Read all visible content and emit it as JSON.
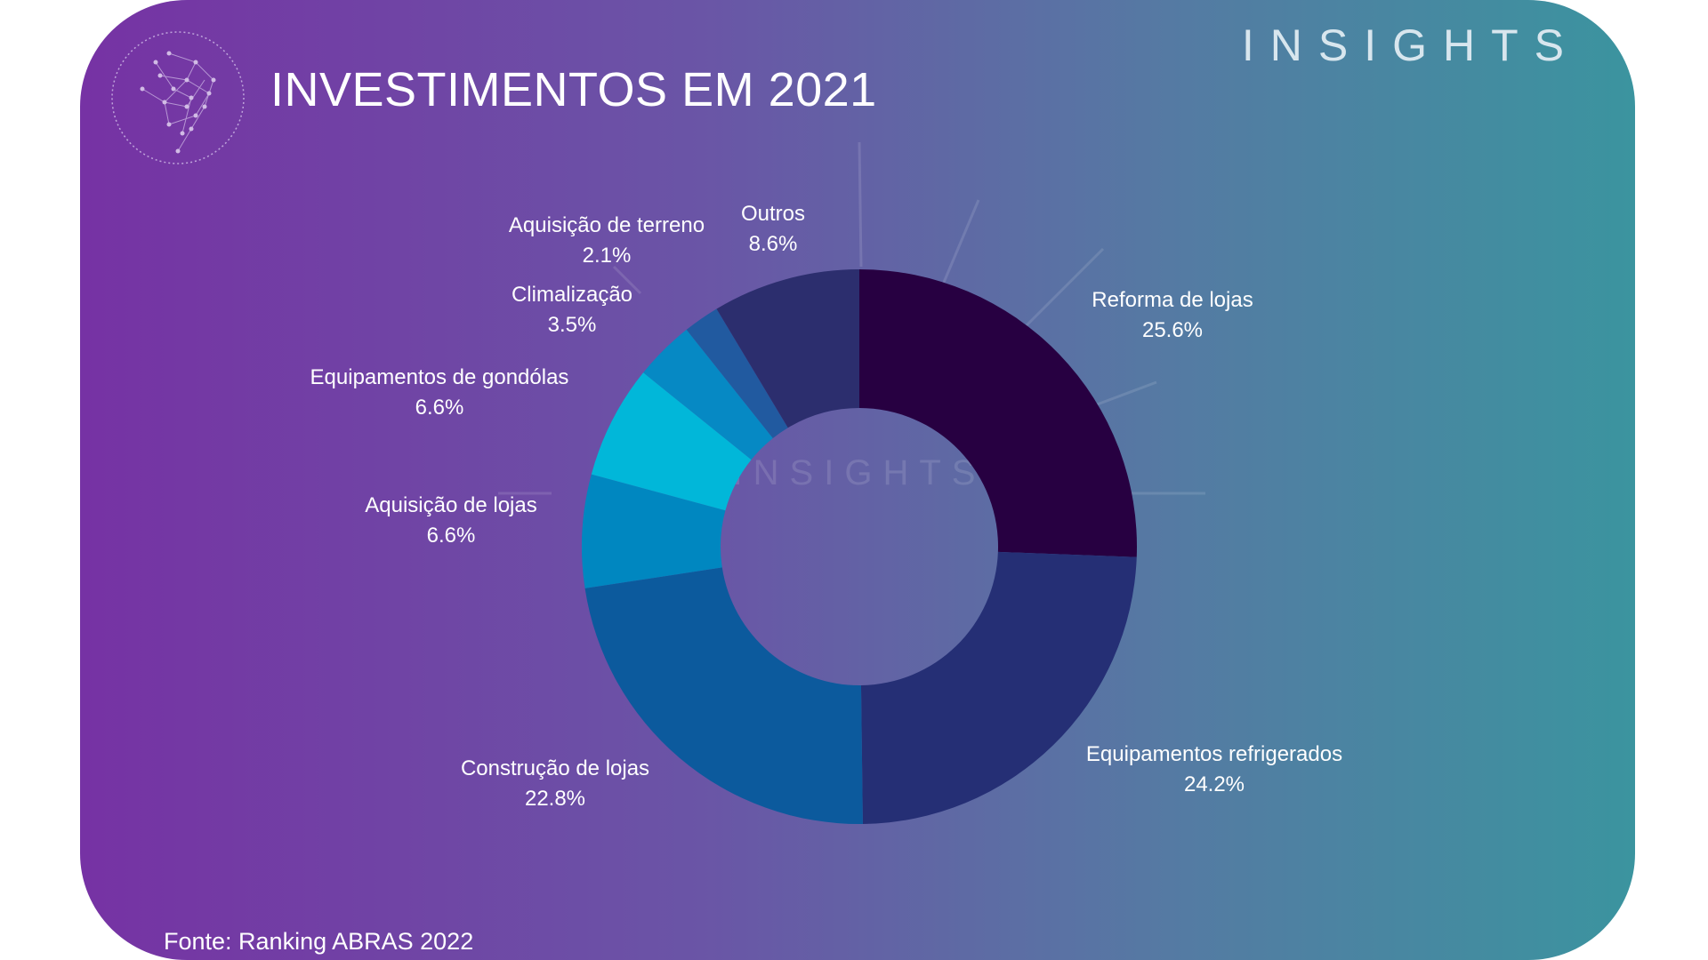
{
  "brand": "INSIGHTS",
  "header": {
    "title": "INVESTIMENTOS EM 2021"
  },
  "footer": {
    "source": "Fonte: Ranking ABRAS 2022"
  },
  "colors": {
    "gradient_start": "#7632a4",
    "gradient_end": "#3b949f",
    "label": "#ffffff"
  },
  "chart_data": {
    "type": "pie",
    "variant": "donut",
    "title": "INVESTIMENTOS EM 2021",
    "slices": [
      {
        "label": "Reforma de lojas",
        "value": 25.6,
        "value_label": "25.6%",
        "color": "#270041"
      },
      {
        "label": "Equipamentos refrigerados",
        "value": 24.2,
        "value_label": "24.2%",
        "color": "#252f75"
      },
      {
        "label": "Construção de lojas",
        "value": 22.8,
        "value_label": "22.8%",
        "color": "#0c5a9d"
      },
      {
        "label": "Aquisição de lojas",
        "value": 6.6,
        "value_label": "6.6%",
        "color": "#0087c0"
      },
      {
        "label": "Equipamentos de gondólas",
        "value": 6.6,
        "value_label": "6.6%",
        "color": "#01b7d9"
      },
      {
        "label": "Climalização",
        "value": 3.5,
        "value_label": "3.5%",
        "color": "#0689c4"
      },
      {
        "label": "Aquisição de terreno",
        "value": 2.1,
        "value_label": "2.1%",
        "color": "#215aa0"
      },
      {
        "label": "Outros",
        "value": 8.6,
        "value_label": "8.6%",
        "color": "#2c2e6e"
      }
    ],
    "legend": "none"
  }
}
